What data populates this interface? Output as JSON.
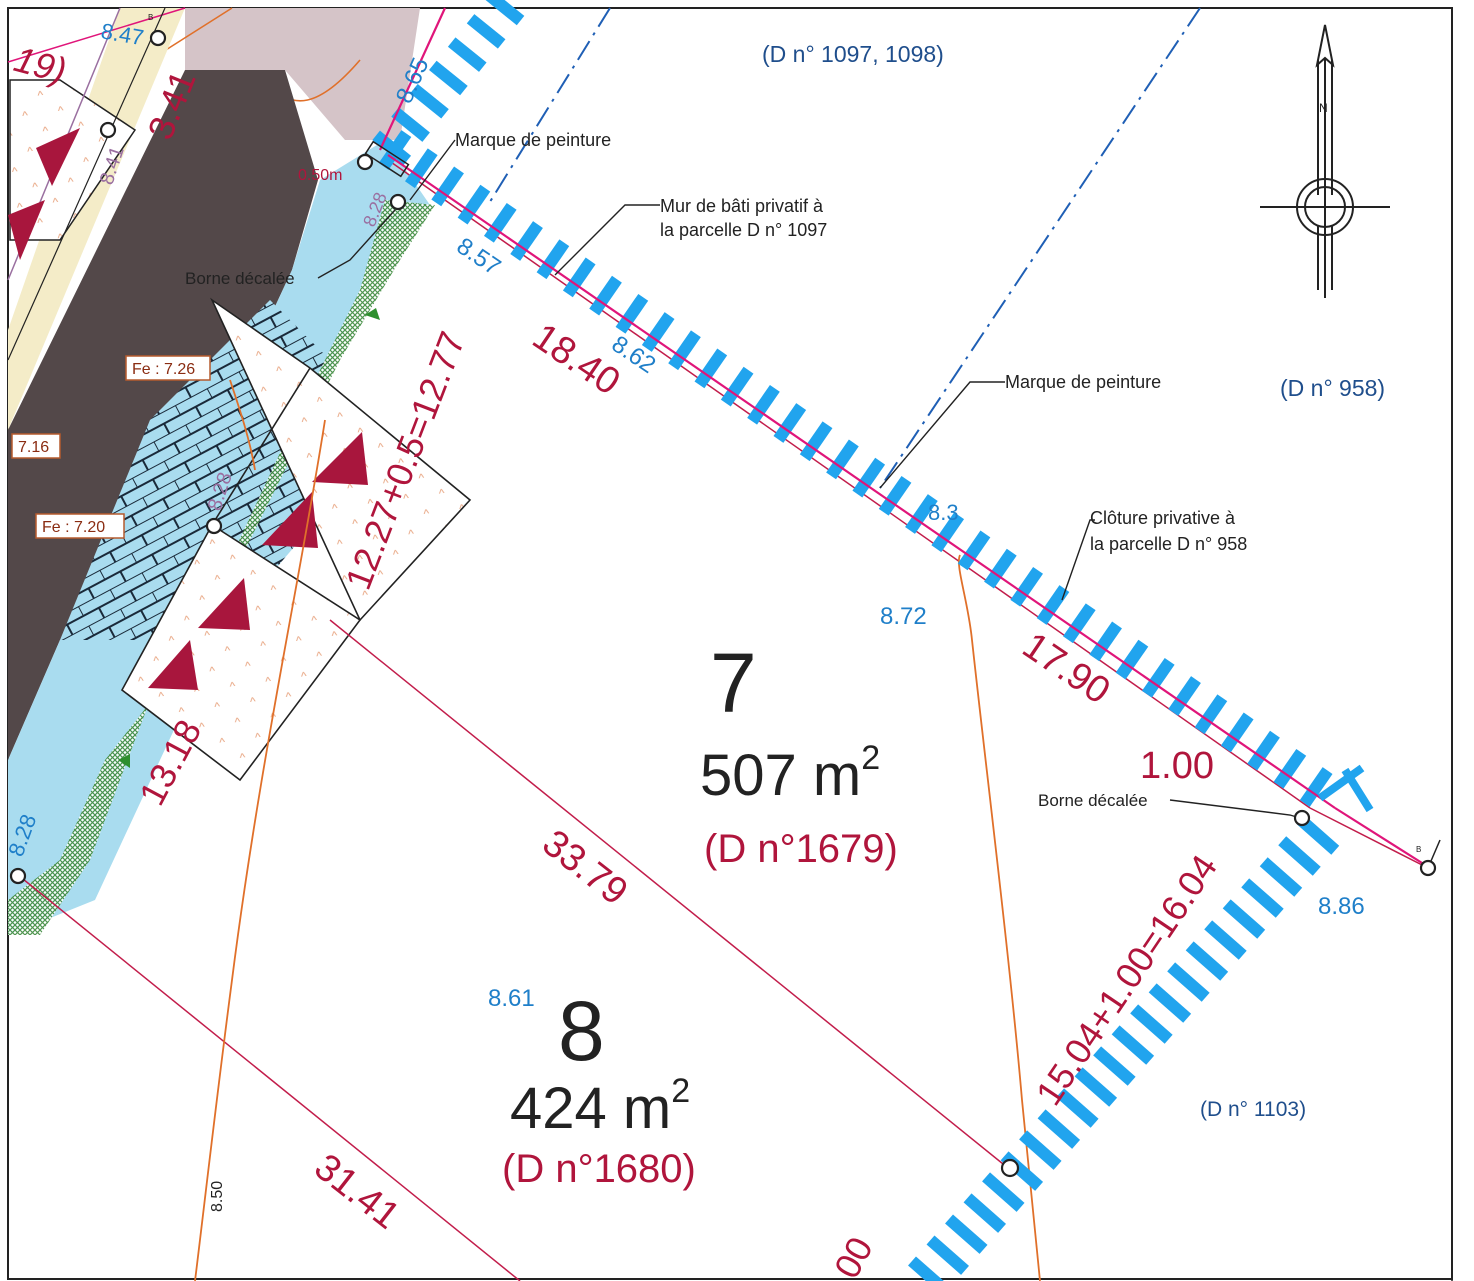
{
  "colors": {
    "red": "#b0153c",
    "blue_text": "#1f7fc9",
    "navy_text": "#1f4e8c",
    "fence_blue": "#21a4ee",
    "magenta": "#e0157a",
    "orange": "#e0702a",
    "light_blue": "#a9dcef",
    "dark_brown": "#534849",
    "cream": "#f4ecc8",
    "pink_gray": "#d5c4c8",
    "green_hatch": "#3d8a3d",
    "mauve": "#9a6fa0"
  },
  "icons": [
    "north-arrow-icon",
    "survey-marker-icon",
    "slope-arrow-icon"
  ],
  "lots": {
    "lot7": {
      "number": "7",
      "area": "507  m",
      "area_exp": "2",
      "ref": "(D n°1679)"
    },
    "lot8": {
      "number": "8",
      "area": "424  m",
      "area_exp": "2",
      "ref": "(D n°1680)"
    }
  },
  "neighbors": {
    "n1097": "(D n° 1097, 1098)",
    "n958": "(D n° 958)",
    "n1103": "(D n° 1103)"
  },
  "dimensions": {
    "d1840": "18.40",
    "d1790": "17.90",
    "d100": "1.00",
    "d1227": "12.27+0.5=12.77",
    "d1318": "13.18",
    "d3379": "33.79",
    "d3141": "31.41",
    "d1504": "15.04+1.00=16.04",
    "d341": "3.41",
    "d19": "19)",
    "d00": "00",
    "d050m": "0.50m"
  },
  "elevations": {
    "e865": "8.65",
    "e847": "8.47",
    "e841": "8.41",
    "e828a": "8.28",
    "e857": "8.57",
    "e862": "8.62",
    "e872": "8.72",
    "e886": "8.86",
    "e861": "8.61",
    "e828c": "8.28",
    "e826": "8.28",
    "e83": "8.3",
    "e850": "8.50"
  },
  "floor_levels": {
    "fe726": "Fe : 7.26",
    "fe716": "7.16",
    "fe720": "Fe : 7.20"
  },
  "annotations": {
    "paint1": "Marque de peinture",
    "wall_l1": "Mur de bâti privatif à",
    "wall_l2": "la parcelle D n° 1097",
    "borne1": "Borne décalée",
    "paint2": "Marque de peinture",
    "fence_l1": "Clôture privative à",
    "fence_l2": "la parcelle D n° 958",
    "borne2": "Borne décalée"
  },
  "compass": {
    "n": "N"
  },
  "small_marks": {
    "b1": "B",
    "b2": "B"
  }
}
